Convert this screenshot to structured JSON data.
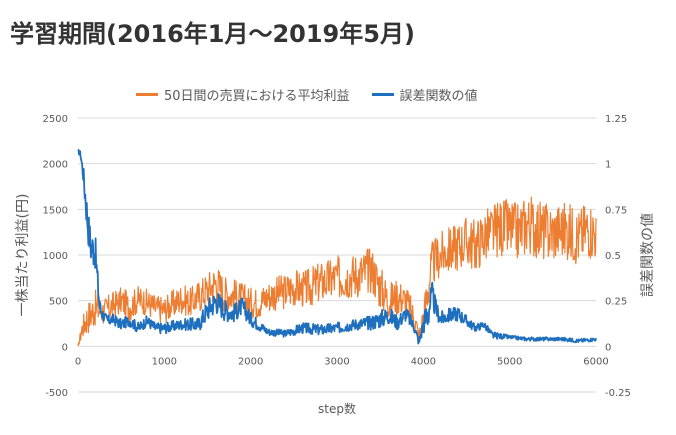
{
  "title": "学習期間(2016年1月～2019年5月)",
  "chart_data": {
    "type": "line",
    "xlabel": "step数",
    "ylabel_left": "一株当たり利益(円)",
    "ylabel_right": "誤差関数の値",
    "xlim": [
      0,
      6000
    ],
    "ylim_left": [
      -500,
      2500
    ],
    "ylim_right": [
      -0.25,
      1.25
    ],
    "x_ticks": [
      "0",
      "1000",
      "2000",
      "3000",
      "4000",
      "5000",
      "6000"
    ],
    "y_left_ticks": [
      "-500",
      "0",
      "500",
      "1000",
      "1500",
      "2000",
      "2500"
    ],
    "y_right_ticks": [
      "-0.25",
      "0",
      "0.25",
      "0.5",
      "0.75",
      "1",
      "1.25"
    ],
    "grid": "horizontal",
    "legend_position": "top",
    "series": [
      {
        "name": "50日間の売買における平均利益",
        "axis": "left",
        "color": "#ED7D31",
        "x": [
          0,
          50,
          100,
          200,
          300,
          400,
          500,
          600,
          700,
          800,
          900,
          1000,
          1100,
          1200,
          1300,
          1400,
          1500,
          1600,
          1700,
          1800,
          1900,
          2000,
          2100,
          2200,
          2300,
          2400,
          2500,
          2600,
          2700,
          2800,
          2900,
          3000,
          3100,
          3200,
          3300,
          3400,
          3500,
          3600,
          3700,
          3800,
          3900,
          3950,
          4000,
          4050,
          4100,
          4200,
          4300,
          4400,
          4500,
          4600,
          4700,
          4800,
          4900,
          5000,
          5100,
          5200,
          5300,
          5400,
          5500,
          5600,
          5700,
          5800,
          5900,
          6000
        ],
        "values": [
          0,
          200,
          300,
          420,
          380,
          450,
          500,
          430,
          520,
          480,
          420,
          400,
          460,
          520,
          480,
          550,
          620,
          700,
          580,
          560,
          520,
          480,
          480,
          550,
          580,
          600,
          650,
          620,
          650,
          700,
          720,
          750,
          760,
          780,
          800,
          850,
          650,
          500,
          550,
          500,
          300,
          100,
          300,
          600,
          900,
          1000,
          1050,
          1100,
          1150,
          1100,
          1200,
          1250,
          1300,
          1280,
          1250,
          1350,
          1300,
          1250,
          1250,
          1280,
          1250,
          1200,
          1300,
          1250
        ],
        "noise": [
          0,
          120,
          180,
          200,
          150,
          150,
          150,
          160,
          150,
          150,
          150,
          150,
          160,
          170,
          160,
          180,
          200,
          220,
          200,
          190,
          180,
          170,
          170,
          180,
          190,
          200,
          210,
          200,
          220,
          230,
          240,
          240,
          240,
          250,
          260,
          260,
          250,
          200,
          200,
          180,
          150,
          100,
          200,
          250,
          250,
          250,
          260,
          270,
          280,
          290,
          300,
          300,
          320,
          320,
          320,
          340,
          330,
          330,
          320,
          320,
          320,
          320,
          320,
          320
        ]
      },
      {
        "name": "誤差関数の値",
        "axis": "right",
        "color": "#1F6FBF",
        "x": [
          0,
          30,
          60,
          80,
          100,
          120,
          150,
          200,
          250,
          300,
          350,
          400,
          500,
          600,
          700,
          800,
          900,
          1000,
          1200,
          1400,
          1500,
          1600,
          1700,
          1800,
          1900,
          2000,
          2200,
          2400,
          2600,
          2800,
          3000,
          3200,
          3400,
          3500,
          3600,
          3700,
          3800,
          3900,
          3950,
          4000,
          4050,
          4100,
          4150,
          4200,
          4300,
          4400,
          4500,
          4600,
          4700,
          4800,
          5000,
          5200,
          5400,
          5600,
          5800,
          6000
        ],
        "values": [
          1.07,
          1.05,
          0.95,
          0.85,
          0.75,
          0.65,
          0.55,
          0.52,
          0.22,
          0.16,
          0.14,
          0.15,
          0.12,
          0.14,
          0.1,
          0.14,
          0.1,
          0.1,
          0.12,
          0.12,
          0.2,
          0.25,
          0.2,
          0.18,
          0.22,
          0.15,
          0.08,
          0.07,
          0.1,
          0.09,
          0.1,
          0.12,
          0.13,
          0.15,
          0.17,
          0.13,
          0.18,
          0.1,
          0.02,
          0.12,
          0.18,
          0.28,
          0.2,
          0.15,
          0.17,
          0.18,
          0.14,
          0.1,
          0.12,
          0.06,
          0.05,
          0.04,
          0.04,
          0.04,
          0.03,
          0.04
        ],
        "noise": [
          0.01,
          0.02,
          0.05,
          0.08,
          0.1,
          0.1,
          0.1,
          0.1,
          0.05,
          0.03,
          0.03,
          0.03,
          0.03,
          0.03,
          0.03,
          0.03,
          0.03,
          0.03,
          0.03,
          0.04,
          0.06,
          0.07,
          0.06,
          0.05,
          0.05,
          0.04,
          0.02,
          0.02,
          0.03,
          0.03,
          0.03,
          0.03,
          0.04,
          0.05,
          0.05,
          0.04,
          0.04,
          0.03,
          0.02,
          0.05,
          0.1,
          0.08,
          0.05,
          0.04,
          0.04,
          0.04,
          0.03,
          0.02,
          0.02,
          0.02,
          0.01,
          0.01,
          0.01,
          0.01,
          0.01,
          0.01
        ]
      }
    ]
  }
}
